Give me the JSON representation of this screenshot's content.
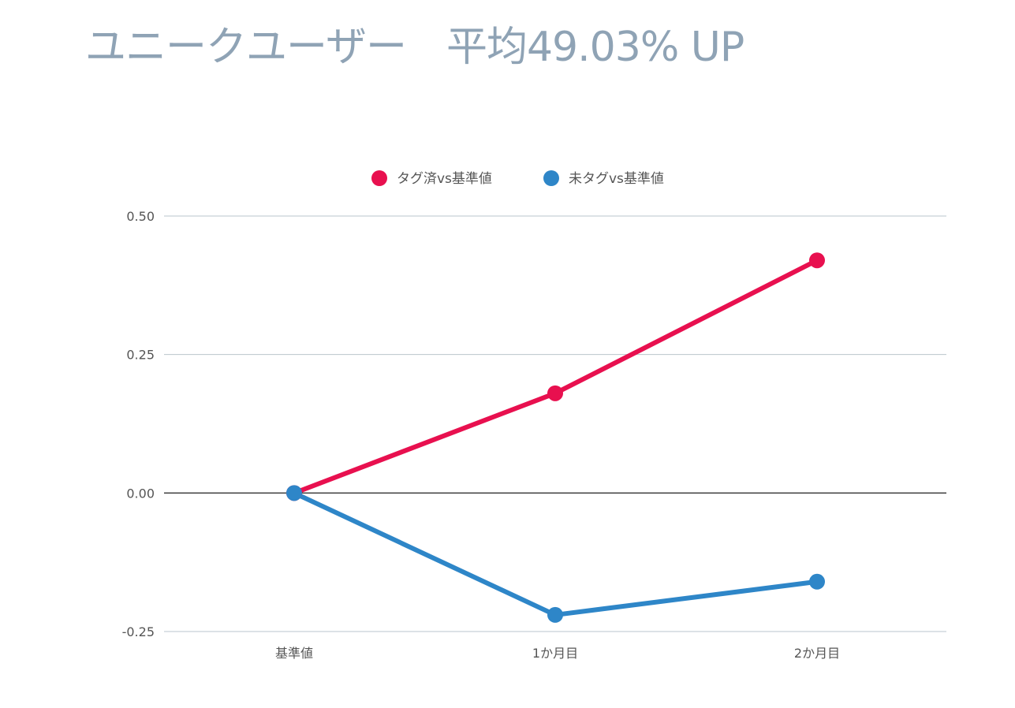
{
  "page": {
    "title": "ユニークユーザー　平均49.03% UP"
  },
  "chart_data": {
    "type": "line",
    "title": "",
    "xlabel": "",
    "ylabel": "",
    "categories": [
      "基準値",
      "1か月目",
      "2か月目"
    ],
    "series": [
      {
        "name": "タグ済vs基準値",
        "color": "#e8104f",
        "values": [
          0.0,
          0.18,
          0.42
        ]
      },
      {
        "name": "未タグvs基準値",
        "color": "#2e86c8",
        "values": [
          0.0,
          -0.22,
          -0.16
        ]
      }
    ],
    "ylim": [
      -0.25,
      0.5
    ],
    "yticks": [
      0.5,
      0.25,
      0.0,
      -0.25
    ],
    "ytick_labels": [
      "0.50",
      "0.25",
      "0.00",
      "-0.25"
    ],
    "grid": true,
    "legend": "top"
  },
  "colors": {
    "title": "#8fa3b5",
    "gridline": "#b9c4cc",
    "zeroline": "#333333",
    "axis_text": "#555555"
  }
}
